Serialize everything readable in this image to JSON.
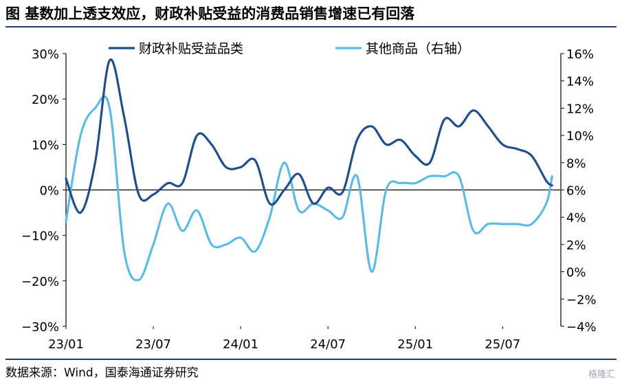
{
  "figure": {
    "title": "图 基数加上透支效应，财政补贴受益的消费品销售增速已有回落",
    "source": "数据来源：Wind，国泰海通证券研究",
    "watermark": "格隆汇"
  },
  "colors": {
    "series1": "#1f4e8c",
    "series2": "#5bbbe6",
    "axis": "#000000",
    "rule": "#1f3f7a"
  },
  "chart_data": {
    "type": "line",
    "title": "",
    "xlabel": "",
    "ylabel": "",
    "x_tick_labels": [
      "23/01",
      "23/07",
      "24/01",
      "24/07",
      "25/01",
      "25/07"
    ],
    "x_tick_positions": [
      0,
      6,
      12,
      18,
      24,
      30
    ],
    "x_range": [
      0,
      34
    ],
    "y_left": {
      "range": [
        -30,
        30
      ],
      "ticks": [
        30,
        20,
        10,
        0,
        -10,
        -20,
        -30
      ],
      "tick_labels": [
        "30%",
        "20%",
        "10%",
        "0%",
        "−10%",
        "−20%",
        "−30%"
      ]
    },
    "y_right": {
      "range": [
        -4,
        16
      ],
      "ticks": [
        16,
        14,
        12,
        10,
        8,
        6,
        4,
        2,
        0,
        -2,
        -4
      ],
      "tick_labels": [
        "16%",
        "14%",
        "12%",
        "10%",
        "8%",
        "6%",
        "4%",
        "2%",
        "0%",
        "−2%",
        "−4%"
      ]
    },
    "legend_position": "top",
    "grid": false,
    "series": [
      {
        "name": "财政补贴受益品类",
        "axis": "left",
        "x": [
          0,
          1,
          2,
          3,
          4,
          5,
          6,
          7,
          8,
          9,
          10,
          11,
          12,
          13,
          14,
          15,
          16,
          17,
          18,
          19,
          20,
          21,
          22,
          23,
          24,
          25,
          26,
          27,
          28,
          29,
          30,
          31,
          32,
          33,
          33.4
        ],
        "values": [
          2.5,
          -5,
          6,
          28.5,
          16,
          -1,
          -1,
          1.5,
          1.5,
          12,
          10,
          5,
          5,
          6.5,
          -3,
          0,
          3.5,
          -3,
          0.5,
          -0.5,
          11,
          14,
          10,
          11,
          7.5,
          6,
          15.5,
          14,
          17.5,
          14,
          10,
          9,
          7.5,
          2,
          1
        ]
      },
      {
        "name": "其他商品（右轴）",
        "axis": "right",
        "x": [
          0,
          1,
          2,
          3,
          4,
          5,
          6,
          7,
          8,
          9,
          10,
          11,
          12,
          13,
          14,
          15,
          16,
          17,
          18,
          19,
          20,
          21,
          22,
          23,
          24,
          25,
          26,
          27,
          28,
          29,
          30,
          31,
          32,
          33,
          33.4
        ],
        "values": [
          3.7,
          10,
          12,
          12,
          1.5,
          -0.6,
          2,
          5,
          3,
          4.5,
          2,
          2,
          2.5,
          1.5,
          4,
          8,
          4.5,
          5,
          4.5,
          4,
          7,
          0,
          6,
          6.5,
          6.5,
          7,
          7,
          7,
          3,
          3.5,
          3.5,
          3.5,
          3.5,
          5,
          7
        ]
      }
    ]
  }
}
